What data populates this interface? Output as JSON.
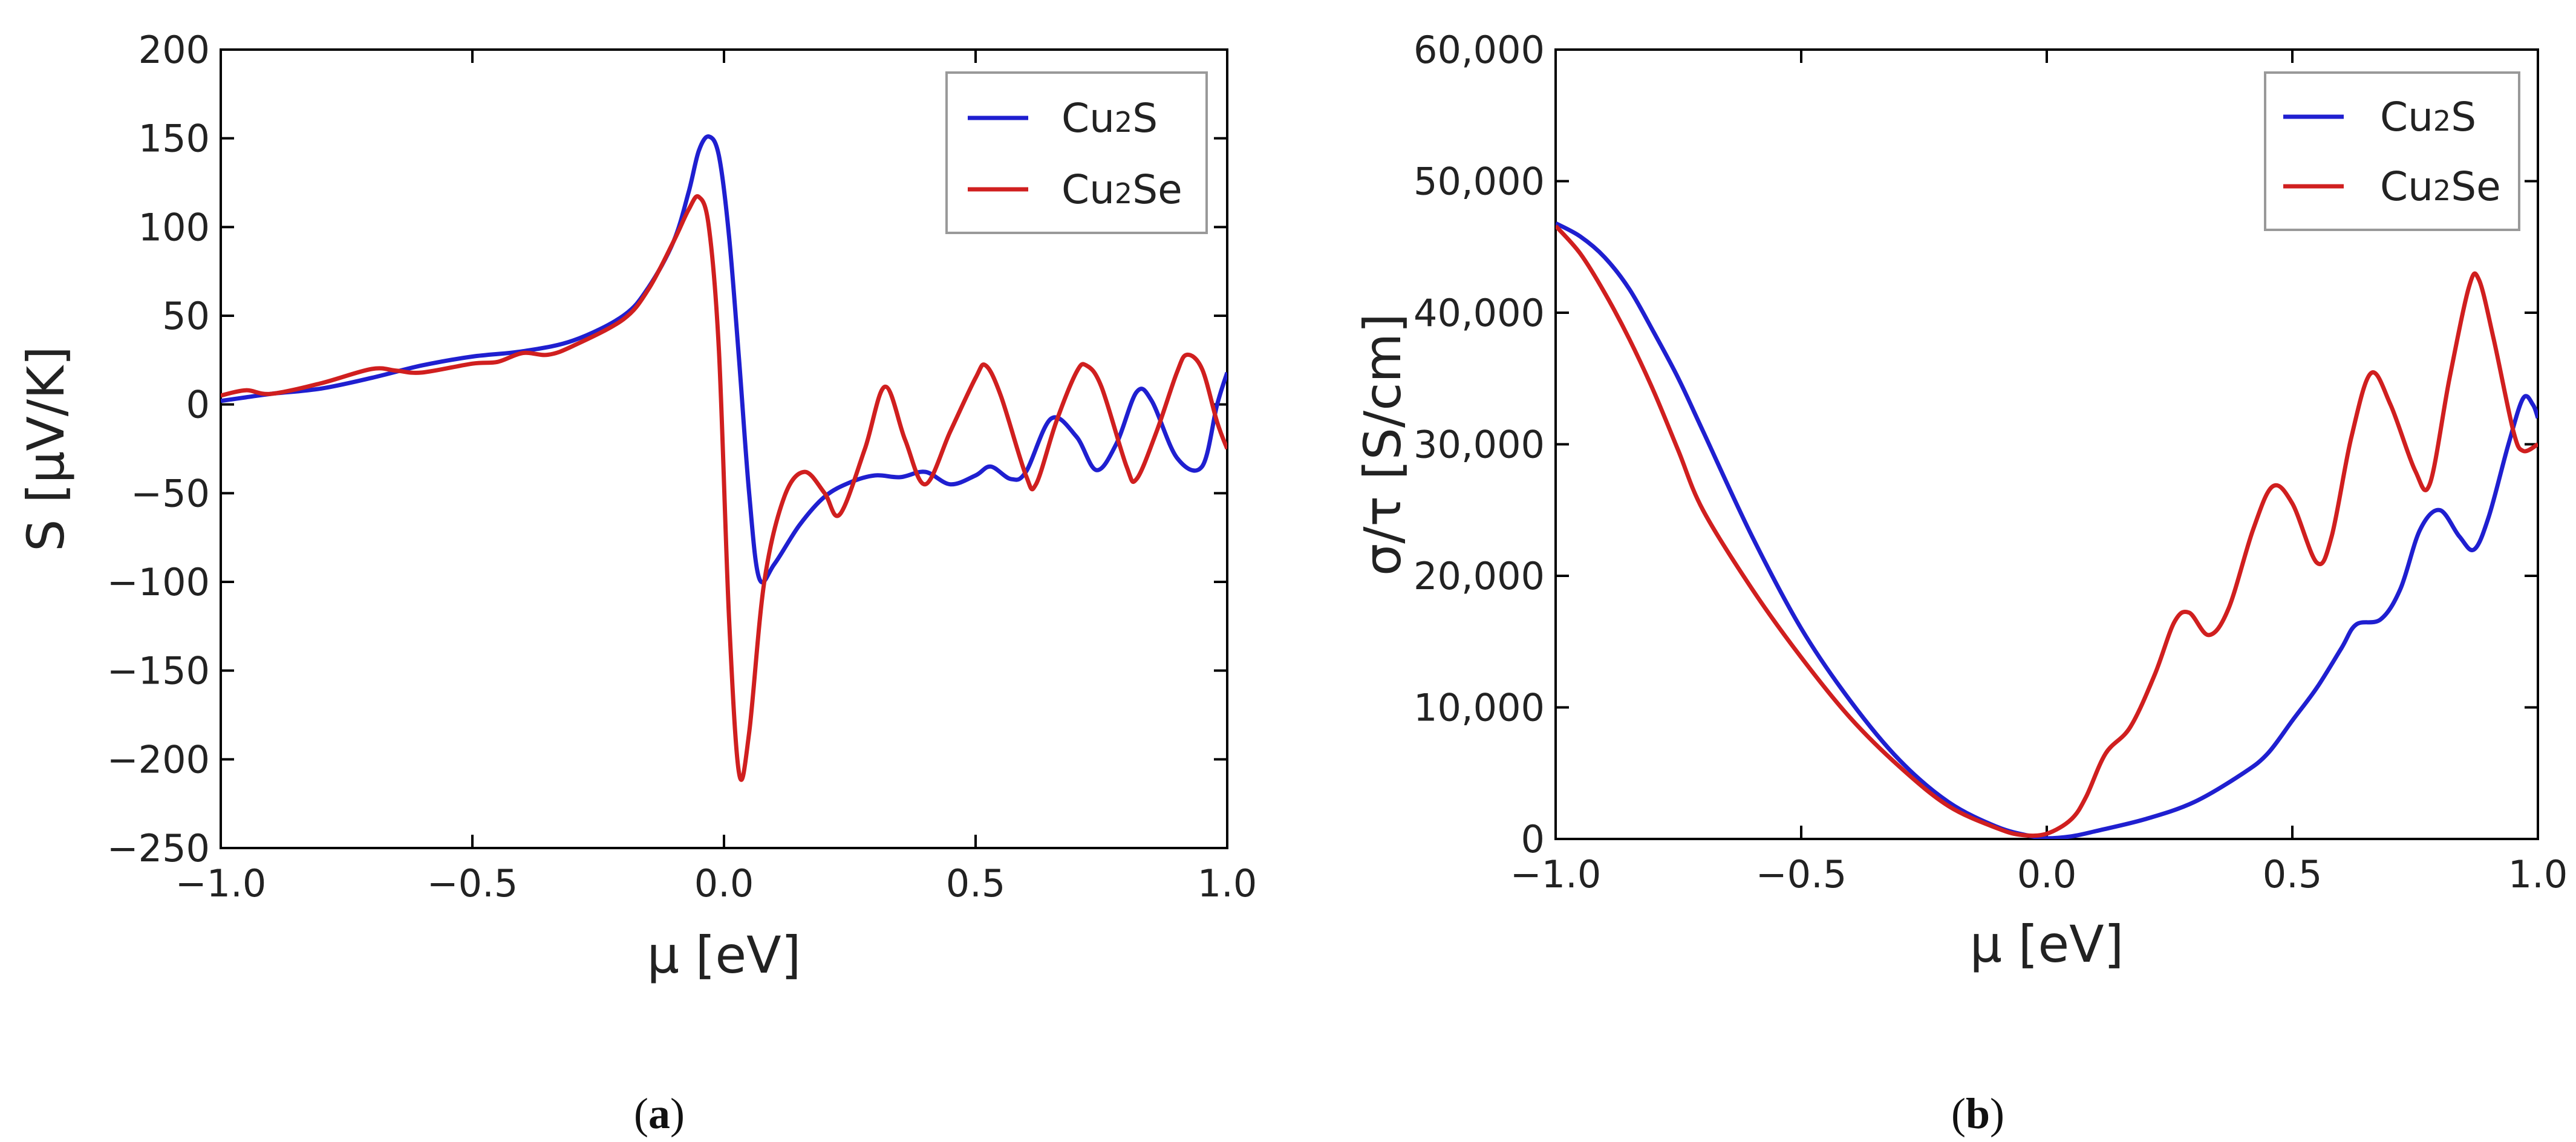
{
  "chart_data": [
    {
      "id": "a",
      "type": "line",
      "caption_open": "(",
      "caption_letter": "a",
      "caption_close": ")",
      "xlabel": "μ [eV]",
      "ylabel": "S [μV/K]",
      "xlim": [
        -1.0,
        1.0
      ],
      "ylim": [
        -250,
        200
      ],
      "xticks": [
        -1.0,
        -0.5,
        0.0,
        0.5,
        1.0
      ],
      "xtick_labels": [
        "−1.0",
        "−0.5",
        "0.0",
        "0.5",
        "1.0"
      ],
      "yticks": [
        200,
        150,
        100,
        50,
        0,
        -50,
        -100,
        -150,
        -200,
        -250
      ],
      "ytick_labels": [
        "200",
        "150",
        "100",
        "50",
        "0",
        "−50",
        "−100",
        "−150",
        "−200",
        "−250"
      ],
      "legend_position": "top-right",
      "series": [
        {
          "name": "Cu2S",
          "label_base": "Cu",
          "label_sub": "2",
          "label_rest": "S",
          "color": "#1f1fd0",
          "points": [
            [
              -1.0,
              2
            ],
            [
              -0.95,
              4
            ],
            [
              -0.9,
              6
            ],
            [
              -0.8,
              9
            ],
            [
              -0.7,
              15
            ],
            [
              -0.6,
              22
            ],
            [
              -0.5,
              27
            ],
            [
              -0.4,
              30
            ],
            [
              -0.3,
              36
            ],
            [
              -0.2,
              50
            ],
            [
              -0.15,
              66
            ],
            [
              -0.1,
              92
            ],
            [
              -0.07,
              120
            ],
            [
              -0.05,
              143
            ],
            [
              -0.03,
              151
            ],
            [
              -0.01,
              140
            ],
            [
              0.01,
              95
            ],
            [
              0.03,
              25
            ],
            [
              0.05,
              -50
            ],
            [
              0.07,
              -98
            ],
            [
              0.1,
              -90
            ],
            [
              0.15,
              -68
            ],
            [
              0.2,
              -52
            ],
            [
              0.25,
              -44
            ],
            [
              0.3,
              -40
            ],
            [
              0.35,
              -41
            ],
            [
              0.4,
              -38
            ],
            [
              0.45,
              -45
            ],
            [
              0.5,
              -40
            ],
            [
              0.53,
              -35
            ],
            [
              0.57,
              -42
            ],
            [
              0.6,
              -38
            ],
            [
              0.65,
              -8
            ],
            [
              0.7,
              -18
            ],
            [
              0.74,
              -37
            ],
            [
              0.78,
              -22
            ],
            [
              0.82,
              7
            ],
            [
              0.85,
              2
            ],
            [
              0.9,
              -30
            ],
            [
              0.95,
              -35
            ],
            [
              0.98,
              0
            ],
            [
              1.0,
              18
            ]
          ]
        },
        {
          "name": "Cu2Se",
          "label_base": "Cu",
          "label_sub": "2",
          "label_rest": "Se",
          "color": "#d01f1f",
          "points": [
            [
              -1.0,
              5
            ],
            [
              -0.95,
              8
            ],
            [
              -0.9,
              6
            ],
            [
              -0.8,
              12
            ],
            [
              -0.7,
              20
            ],
            [
              -0.65,
              19
            ],
            [
              -0.6,
              18
            ],
            [
              -0.5,
              23
            ],
            [
              -0.45,
              24
            ],
            [
              -0.4,
              29
            ],
            [
              -0.35,
              28
            ],
            [
              -0.3,
              33
            ],
            [
              -0.2,
              48
            ],
            [
              -0.15,
              65
            ],
            [
              -0.1,
              92
            ],
            [
              -0.07,
              110
            ],
            [
              -0.05,
              117
            ],
            [
              -0.03,
              100
            ],
            [
              -0.01,
              30
            ],
            [
              0.01,
              -120
            ],
            [
              0.03,
              -208
            ],
            [
              0.05,
              -185
            ],
            [
              0.08,
              -100
            ],
            [
              0.12,
              -52
            ],
            [
              0.16,
              -38
            ],
            [
              0.2,
              -50
            ],
            [
              0.23,
              -62
            ],
            [
              0.28,
              -25
            ],
            [
              0.32,
              10
            ],
            [
              0.36,
              -20
            ],
            [
              0.4,
              -45
            ],
            [
              0.45,
              -15
            ],
            [
              0.5,
              15
            ],
            [
              0.52,
              22
            ],
            [
              0.55,
              5
            ],
            [
              0.6,
              -40
            ],
            [
              0.62,
              -45
            ],
            [
              0.66,
              -10
            ],
            [
              0.7,
              18
            ],
            [
              0.72,
              22
            ],
            [
              0.75,
              10
            ],
            [
              0.8,
              -35
            ],
            [
              0.82,
              -42
            ],
            [
              0.86,
              -15
            ],
            [
              0.9,
              18
            ],
            [
              0.92,
              28
            ],
            [
              0.95,
              20
            ],
            [
              0.98,
              -10
            ],
            [
              1.0,
              -25
            ]
          ]
        }
      ]
    },
    {
      "id": "b",
      "type": "line",
      "caption_open": "(",
      "caption_letter": "b",
      "caption_close": ")",
      "xlabel": "μ [eV]",
      "ylabel": "σ/τ [S/cm]",
      "xlim": [
        -1.0,
        1.0
      ],
      "ylim": [
        0,
        60000
      ],
      "xticks": [
        -1.0,
        -0.5,
        0.0,
        0.5,
        1.0
      ],
      "xtick_labels": [
        "−1.0",
        "−0.5",
        "0.0",
        "0.5",
        "1.0"
      ],
      "yticks": [
        60000,
        50000,
        40000,
        30000,
        20000,
        10000,
        0
      ],
      "ytick_labels": [
        "60,000",
        "50,000",
        "40,000",
        "30,000",
        "20,000",
        "10,000",
        "0"
      ],
      "legend_position": "top-right",
      "series": [
        {
          "name": "Cu2S",
          "label_base": "Cu",
          "label_sub": "2",
          "label_rest": "S",
          "color": "#1f1fd0",
          "points": [
            [
              -1.0,
              46800
            ],
            [
              -0.95,
              45800
            ],
            [
              -0.9,
              44200
            ],
            [
              -0.85,
              41800
            ],
            [
              -0.8,
              38500
            ],
            [
              -0.75,
              35000
            ],
            [
              -0.7,
              31000
            ],
            [
              -0.6,
              23000
            ],
            [
              -0.5,
              16000
            ],
            [
              -0.4,
              10500
            ],
            [
              -0.3,
              6000
            ],
            [
              -0.2,
              2800
            ],
            [
              -0.1,
              900
            ],
            [
              -0.03,
              200
            ],
            [
              0.0,
              50
            ],
            [
              0.05,
              200
            ],
            [
              0.1,
              600
            ],
            [
              0.2,
              1500
            ],
            [
              0.3,
              2800
            ],
            [
              0.4,
              5000
            ],
            [
              0.45,
              6500
            ],
            [
              0.5,
              9000
            ],
            [
              0.55,
              11500
            ],
            [
              0.6,
              14500
            ],
            [
              0.63,
              16300
            ],
            [
              0.68,
              16700
            ],
            [
              0.72,
              19000
            ],
            [
              0.76,
              23500
            ],
            [
              0.8,
              25000
            ],
            [
              0.84,
              23000
            ],
            [
              0.87,
              22000
            ],
            [
              0.9,
              24500
            ],
            [
              0.94,
              30000
            ],
            [
              0.97,
              33500
            ],
            [
              0.99,
              33000
            ],
            [
              1.0,
              32000
            ]
          ]
        },
        {
          "name": "Cu2Se",
          "label_base": "Cu",
          "label_sub": "2",
          "label_rest": "Se",
          "color": "#d01f1f",
          "points": [
            [
              -1.0,
              46600
            ],
            [
              -0.95,
              44500
            ],
            [
              -0.9,
              41500
            ],
            [
              -0.85,
              38000
            ],
            [
              -0.8,
              34000
            ],
            [
              -0.75,
              29500
            ],
            [
              -0.7,
              25000
            ],
            [
              -0.6,
              19000
            ],
            [
              -0.5,
              13800
            ],
            [
              -0.4,
              9200
            ],
            [
              -0.3,
              5500
            ],
            [
              -0.2,
              2500
            ],
            [
              -0.1,
              800
            ],
            [
              -0.05,
              300
            ],
            [
              0.0,
              400
            ],
            [
              0.05,
              1500
            ],
            [
              0.08,
              3200
            ],
            [
              0.12,
              6500
            ],
            [
              0.17,
              8500
            ],
            [
              0.22,
              12500
            ],
            [
              0.26,
              16500
            ],
            [
              0.29,
              17200
            ],
            [
              0.33,
              15500
            ],
            [
              0.37,
              17500
            ],
            [
              0.42,
              23500
            ],
            [
              0.46,
              26800
            ],
            [
              0.5,
              25500
            ],
            [
              0.55,
              21000
            ],
            [
              0.58,
              23000
            ],
            [
              0.62,
              30500
            ],
            [
              0.66,
              35400
            ],
            [
              0.7,
              33000
            ],
            [
              0.75,
              28000
            ],
            [
              0.78,
              27000
            ],
            [
              0.82,
              35000
            ],
            [
              0.86,
              42000
            ],
            [
              0.88,
              42500
            ],
            [
              0.91,
              38000
            ],
            [
              0.95,
              31000
            ],
            [
              0.97,
              29500
            ],
            [
              1.0,
              30000
            ]
          ]
        }
      ]
    }
  ]
}
